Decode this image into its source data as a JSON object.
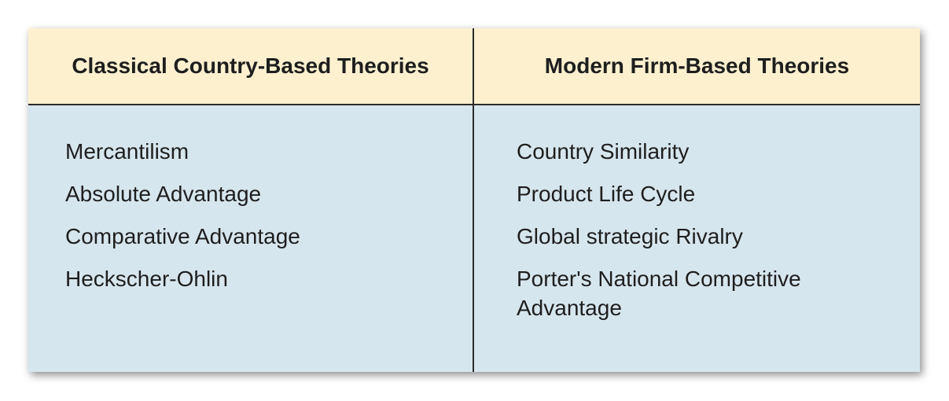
{
  "columns": [
    {
      "header": "Classical Country-Based Theories",
      "items": [
        "Mercantilism",
        "Absolute Advantage",
        "Comparative Advantage",
        "Heckscher-Ohlin"
      ]
    },
    {
      "header": "Modern Firm-Based Theories",
      "items": [
        "Country Similarity",
        "Product Life Cycle",
        "Global strategic Rivalry",
        "Porter's National Competitive Advantage"
      ]
    }
  ],
  "colors": {
    "header_background": "#fcf0cf",
    "body_background": "#d6e6ee",
    "border": "#2b2b2b"
  }
}
